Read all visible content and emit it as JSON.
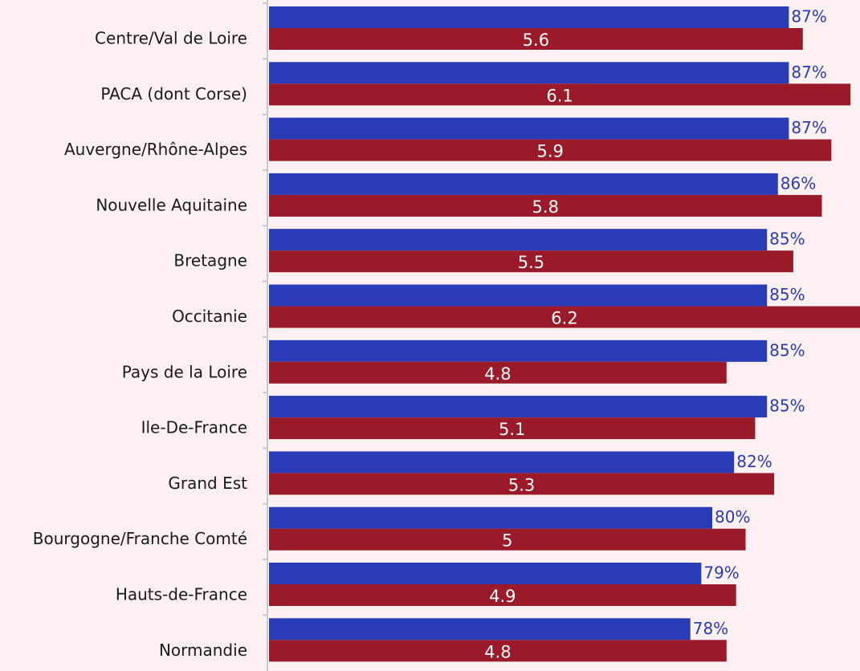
{
  "chart_data": {
    "type": "bar",
    "orientation": "horizontal",
    "categories": [
      "Centre/Val de Loire",
      "PACA (dont Corse)",
      "Auvergne/Rhône-Alpes",
      "Nouvelle Aquitaine",
      "Bretagne",
      "Occitanie",
      "Pays de la Loire",
      "Ile-De-France",
      "Grand Est",
      "Bourgogne/Franche Comté",
      "Hauts-de-France",
      "Normandie"
    ],
    "xlim": [
      39.5,
      93.5
    ],
    "x2lim": [
      0,
      6.2
    ],
    "series": [
      {
        "color": "#2a3bb8",
        "axis": "x",
        "values": [
          87,
          87,
          87,
          86,
          85,
          85,
          85,
          85,
          82,
          80,
          79,
          78
        ],
        "value_labels": [
          "87%",
          "87%",
          "87%",
          "86%",
          "85%",
          "85%",
          "85%",
          "85%",
          "82%",
          "80%",
          "79%",
          "78%"
        ]
      },
      {
        "color": "#9b1a2a",
        "axis": "x2",
        "values": [
          5.6,
          6.1,
          5.9,
          5.8,
          5.5,
          6.2,
          4.8,
          5.1,
          5.3,
          5,
          4.9,
          4.8
        ]
      }
    ]
  }
}
